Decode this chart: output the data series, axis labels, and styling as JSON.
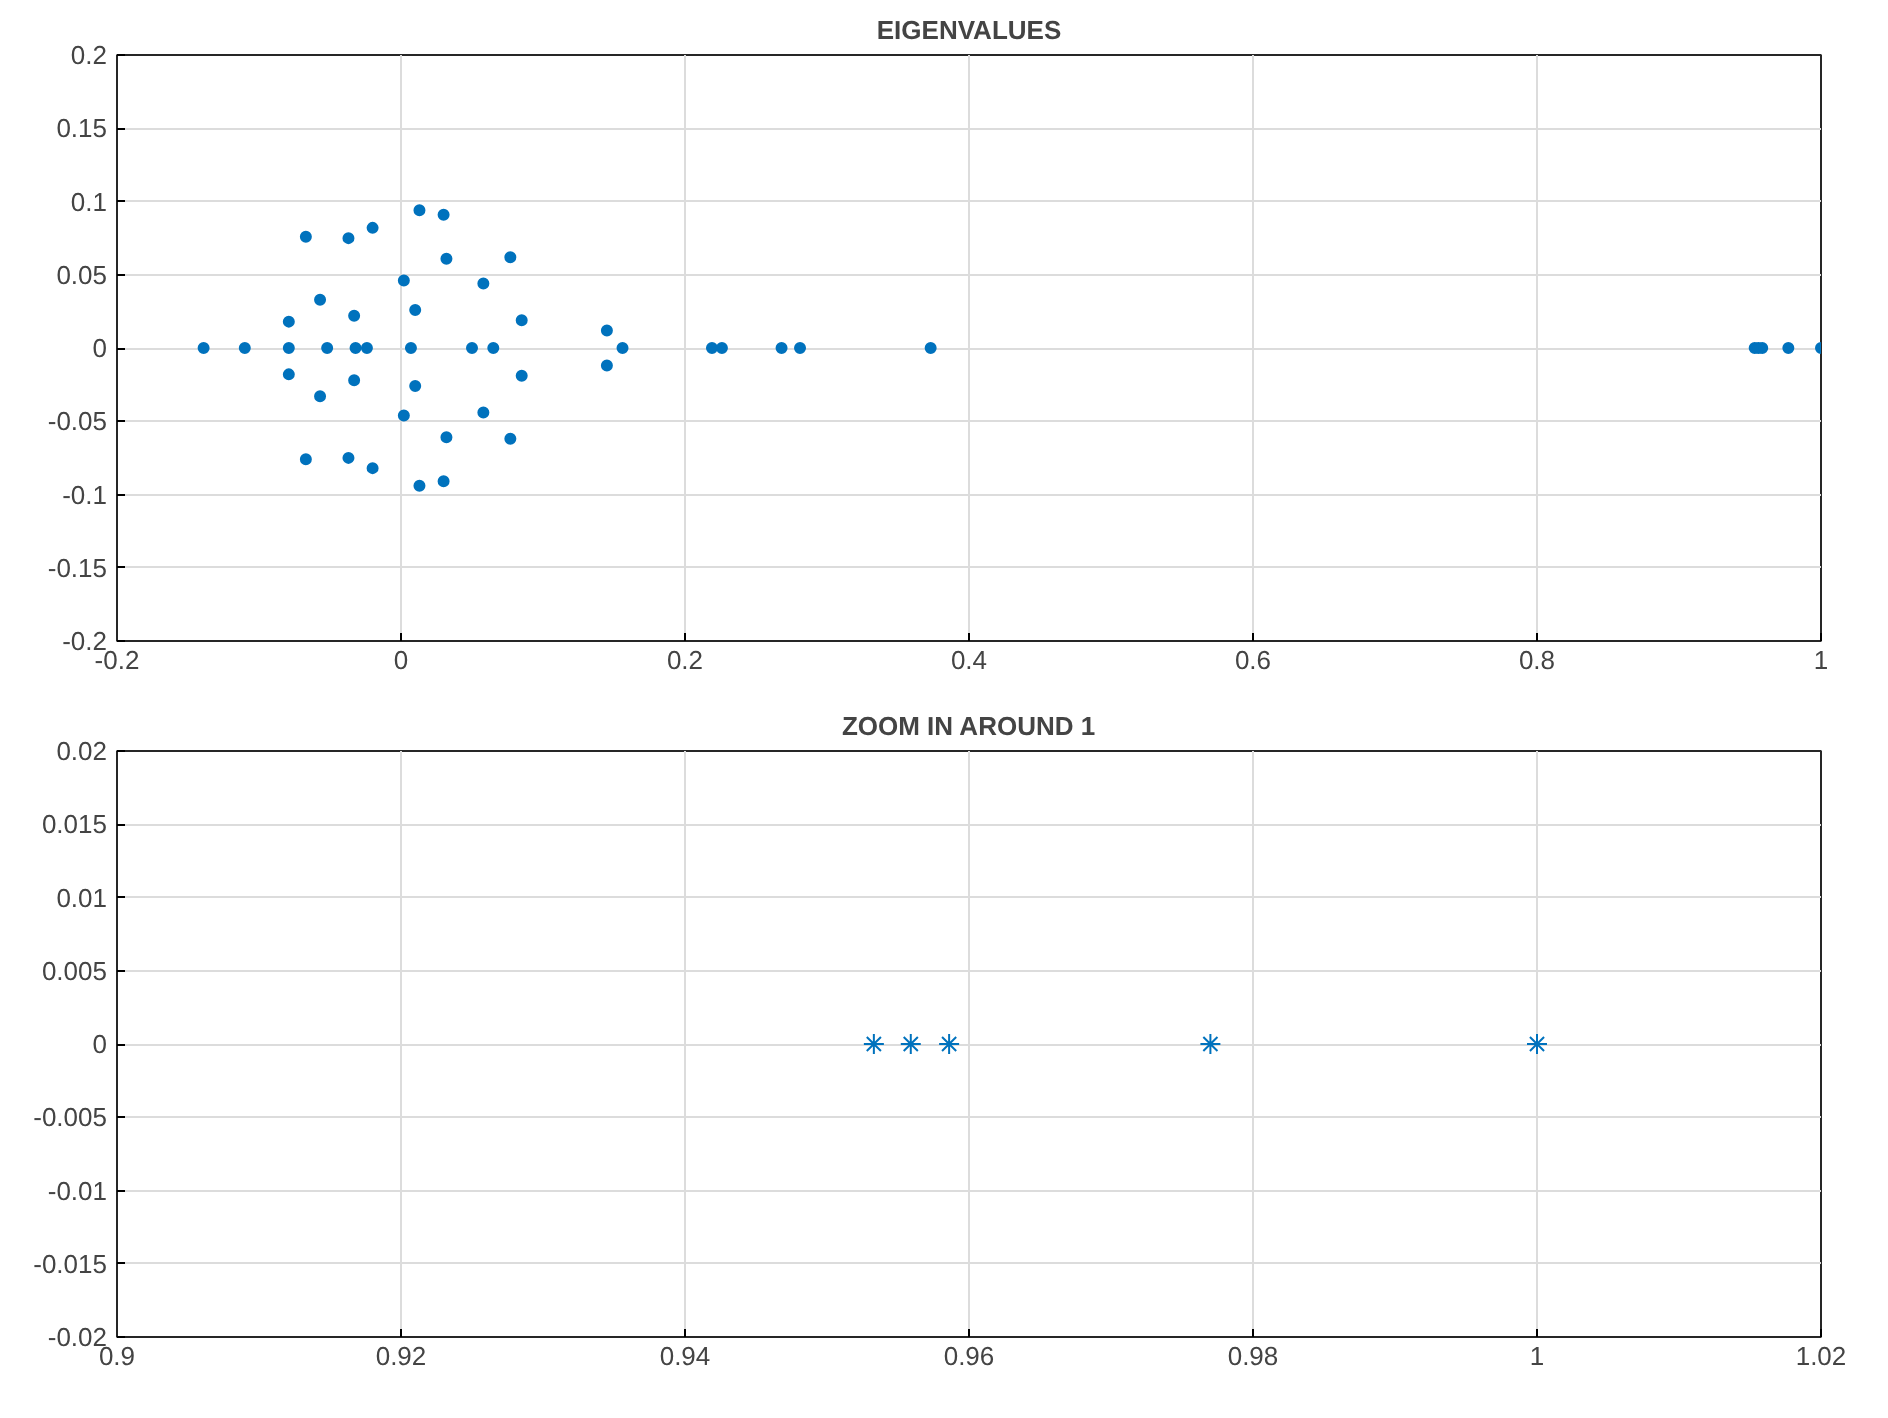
{
  "chart_data": [
    {
      "type": "scatter",
      "title": "EIGENVALUES",
      "xlim": [
        -0.2,
        1
      ],
      "xticks": [
        -0.2,
        0,
        0.2,
        0.4,
        0.6,
        0.8,
        1
      ],
      "ylim": [
        -0.2,
        0.2
      ],
      "yticks": [
        -0.2,
        -0.15,
        -0.1,
        -0.05,
        0,
        0.05,
        0.1,
        0.15,
        0.2
      ],
      "grid": true,
      "marker": "circle",
      "series": [
        {
          "color": "#0072bd",
          "x": [
            -0.139,
            -0.11,
            -0.079,
            -0.052,
            -0.032,
            -0.024,
            0.007,
            0.05,
            0.065,
            0.013,
            0.013,
            0.03,
            0.03,
            -0.067,
            -0.067,
            -0.037,
            -0.037,
            -0.02,
            -0.02,
            0.032,
            0.032,
            0.077,
            0.077,
            0.002,
            0.002,
            0.058,
            0.058,
            -0.057,
            -0.057,
            -0.033,
            -0.033,
            -0.079,
            -0.079,
            0.01,
            0.01,
            0.085,
            0.085,
            0.145,
            0.145,
            0.156,
            0.219,
            0.226,
            0.268,
            0.281,
            0.373,
            0.9533,
            0.9559,
            0.9586,
            0.977,
            1.0
          ],
          "values": [
            0,
            0,
            0,
            0,
            0,
            0,
            0,
            0,
            0,
            0.094,
            -0.094,
            0.091,
            -0.091,
            0.076,
            -0.076,
            0.075,
            -0.075,
            0.082,
            -0.082,
            0.061,
            -0.061,
            0.062,
            -0.062,
            0.046,
            -0.046,
            0.044,
            -0.044,
            0.033,
            -0.033,
            0.022,
            -0.022,
            0.018,
            -0.018,
            0.026,
            -0.026,
            0.019,
            -0.019,
            0.012,
            -0.012,
            0,
            0,
            0,
            0,
            0,
            0,
            0,
            0,
            0,
            0,
            0
          ]
        }
      ]
    },
    {
      "type": "scatter",
      "title": "ZOOM IN AROUND 1",
      "xlim": [
        0.9,
        1.02
      ],
      "xticks": [
        0.9,
        0.92,
        0.94,
        0.96,
        0.98,
        1,
        1.02
      ],
      "ylim": [
        -0.02,
        0.02
      ],
      "yticks": [
        -0.02,
        -0.015,
        -0.01,
        -0.005,
        0,
        0.005,
        0.01,
        0.015,
        0.02
      ],
      "grid": true,
      "marker": "cross",
      "series": [
        {
          "color": "#0072bd",
          "x": [
            0.9533,
            0.9559,
            0.9586,
            0.977,
            1.0
          ],
          "values": [
            0,
            0,
            0,
            0,
            0
          ]
        }
      ]
    }
  ]
}
